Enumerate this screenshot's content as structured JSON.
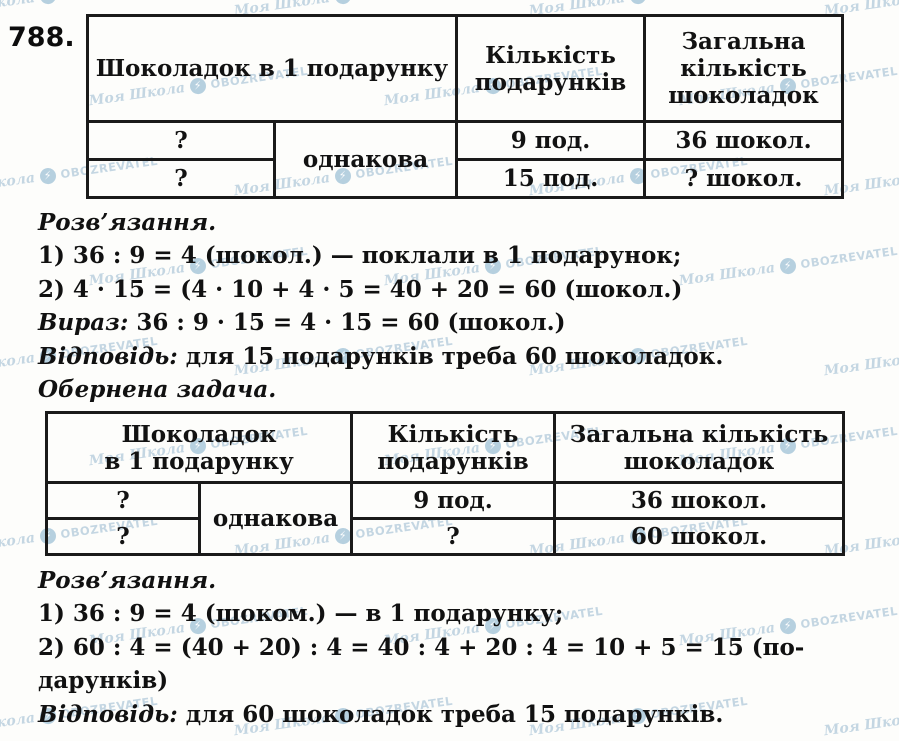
{
  "problem_number": "788.",
  "watermark": {
    "school": "Моя Школа",
    "brand": "OBOZREVATEL",
    "color": "#b6cddd"
  },
  "table1": {
    "headers": {
      "chocolates": "Шоколадок в 1 подарунку",
      "gifts": "Кількість\nподарунків",
      "total": "Загальна\nкількість\nшоколадок"
    },
    "same_label": "однакова",
    "rows": [
      {
        "col1": "?",
        "col2": "9 под.",
        "col3": "36 шокол."
      },
      {
        "col1": "?",
        "col2": "15 под.",
        "col3": "? шокол."
      }
    ]
  },
  "solution1": {
    "title": "Розв’язання.",
    "lines": [
      {
        "lead": "",
        "rest": "1) 36 : 9 = 4 (шокол.) — поклали в 1 подарунок;"
      },
      {
        "lead": "",
        "rest": "2) 4 · 15 = (4 · 10 + 4 · 5 = 40 + 20 = 60 (шокол.)"
      },
      {
        "lead": "Вираз:",
        "rest": " 36 : 9 · 15 = 4 · 15 = 60 (шокол.)"
      },
      {
        "lead": "Відповідь:",
        "rest": " для 15 подарунків треба 60 шоколадок."
      },
      {
        "lead": "Обернена задача.",
        "rest": ""
      }
    ]
  },
  "table2": {
    "headers": {
      "chocolates": "Шоколадок\nв 1 подарунку",
      "gifts": "Кількість\nподарунків",
      "total": "Загальна кількість\nшоколадок"
    },
    "same_label": "однакова",
    "rows": [
      {
        "col1": "?",
        "col2": "9 под.",
        "col3": "36 шокол."
      },
      {
        "col1": "?",
        "col2": "?",
        "col3": "60 шокол."
      }
    ]
  },
  "solution2": {
    "title": "Розв’язання.",
    "lines": [
      {
        "lead": "",
        "rest": "1) 36 : 9 = 4 (шоком.) — в 1 подарунку;"
      },
      {
        "lead": "",
        "rest": "2) 60 : 4 = (40 + 20) : 4 = 40 : 4 + 20 : 4 = 10 + 5 = 15 (по-"
      },
      {
        "lead": "",
        "rest": "дарунків)"
      },
      {
        "lead": "Відповідь:",
        "rest": " для 60 шоколадок треба 15 подарунків."
      }
    ]
  }
}
